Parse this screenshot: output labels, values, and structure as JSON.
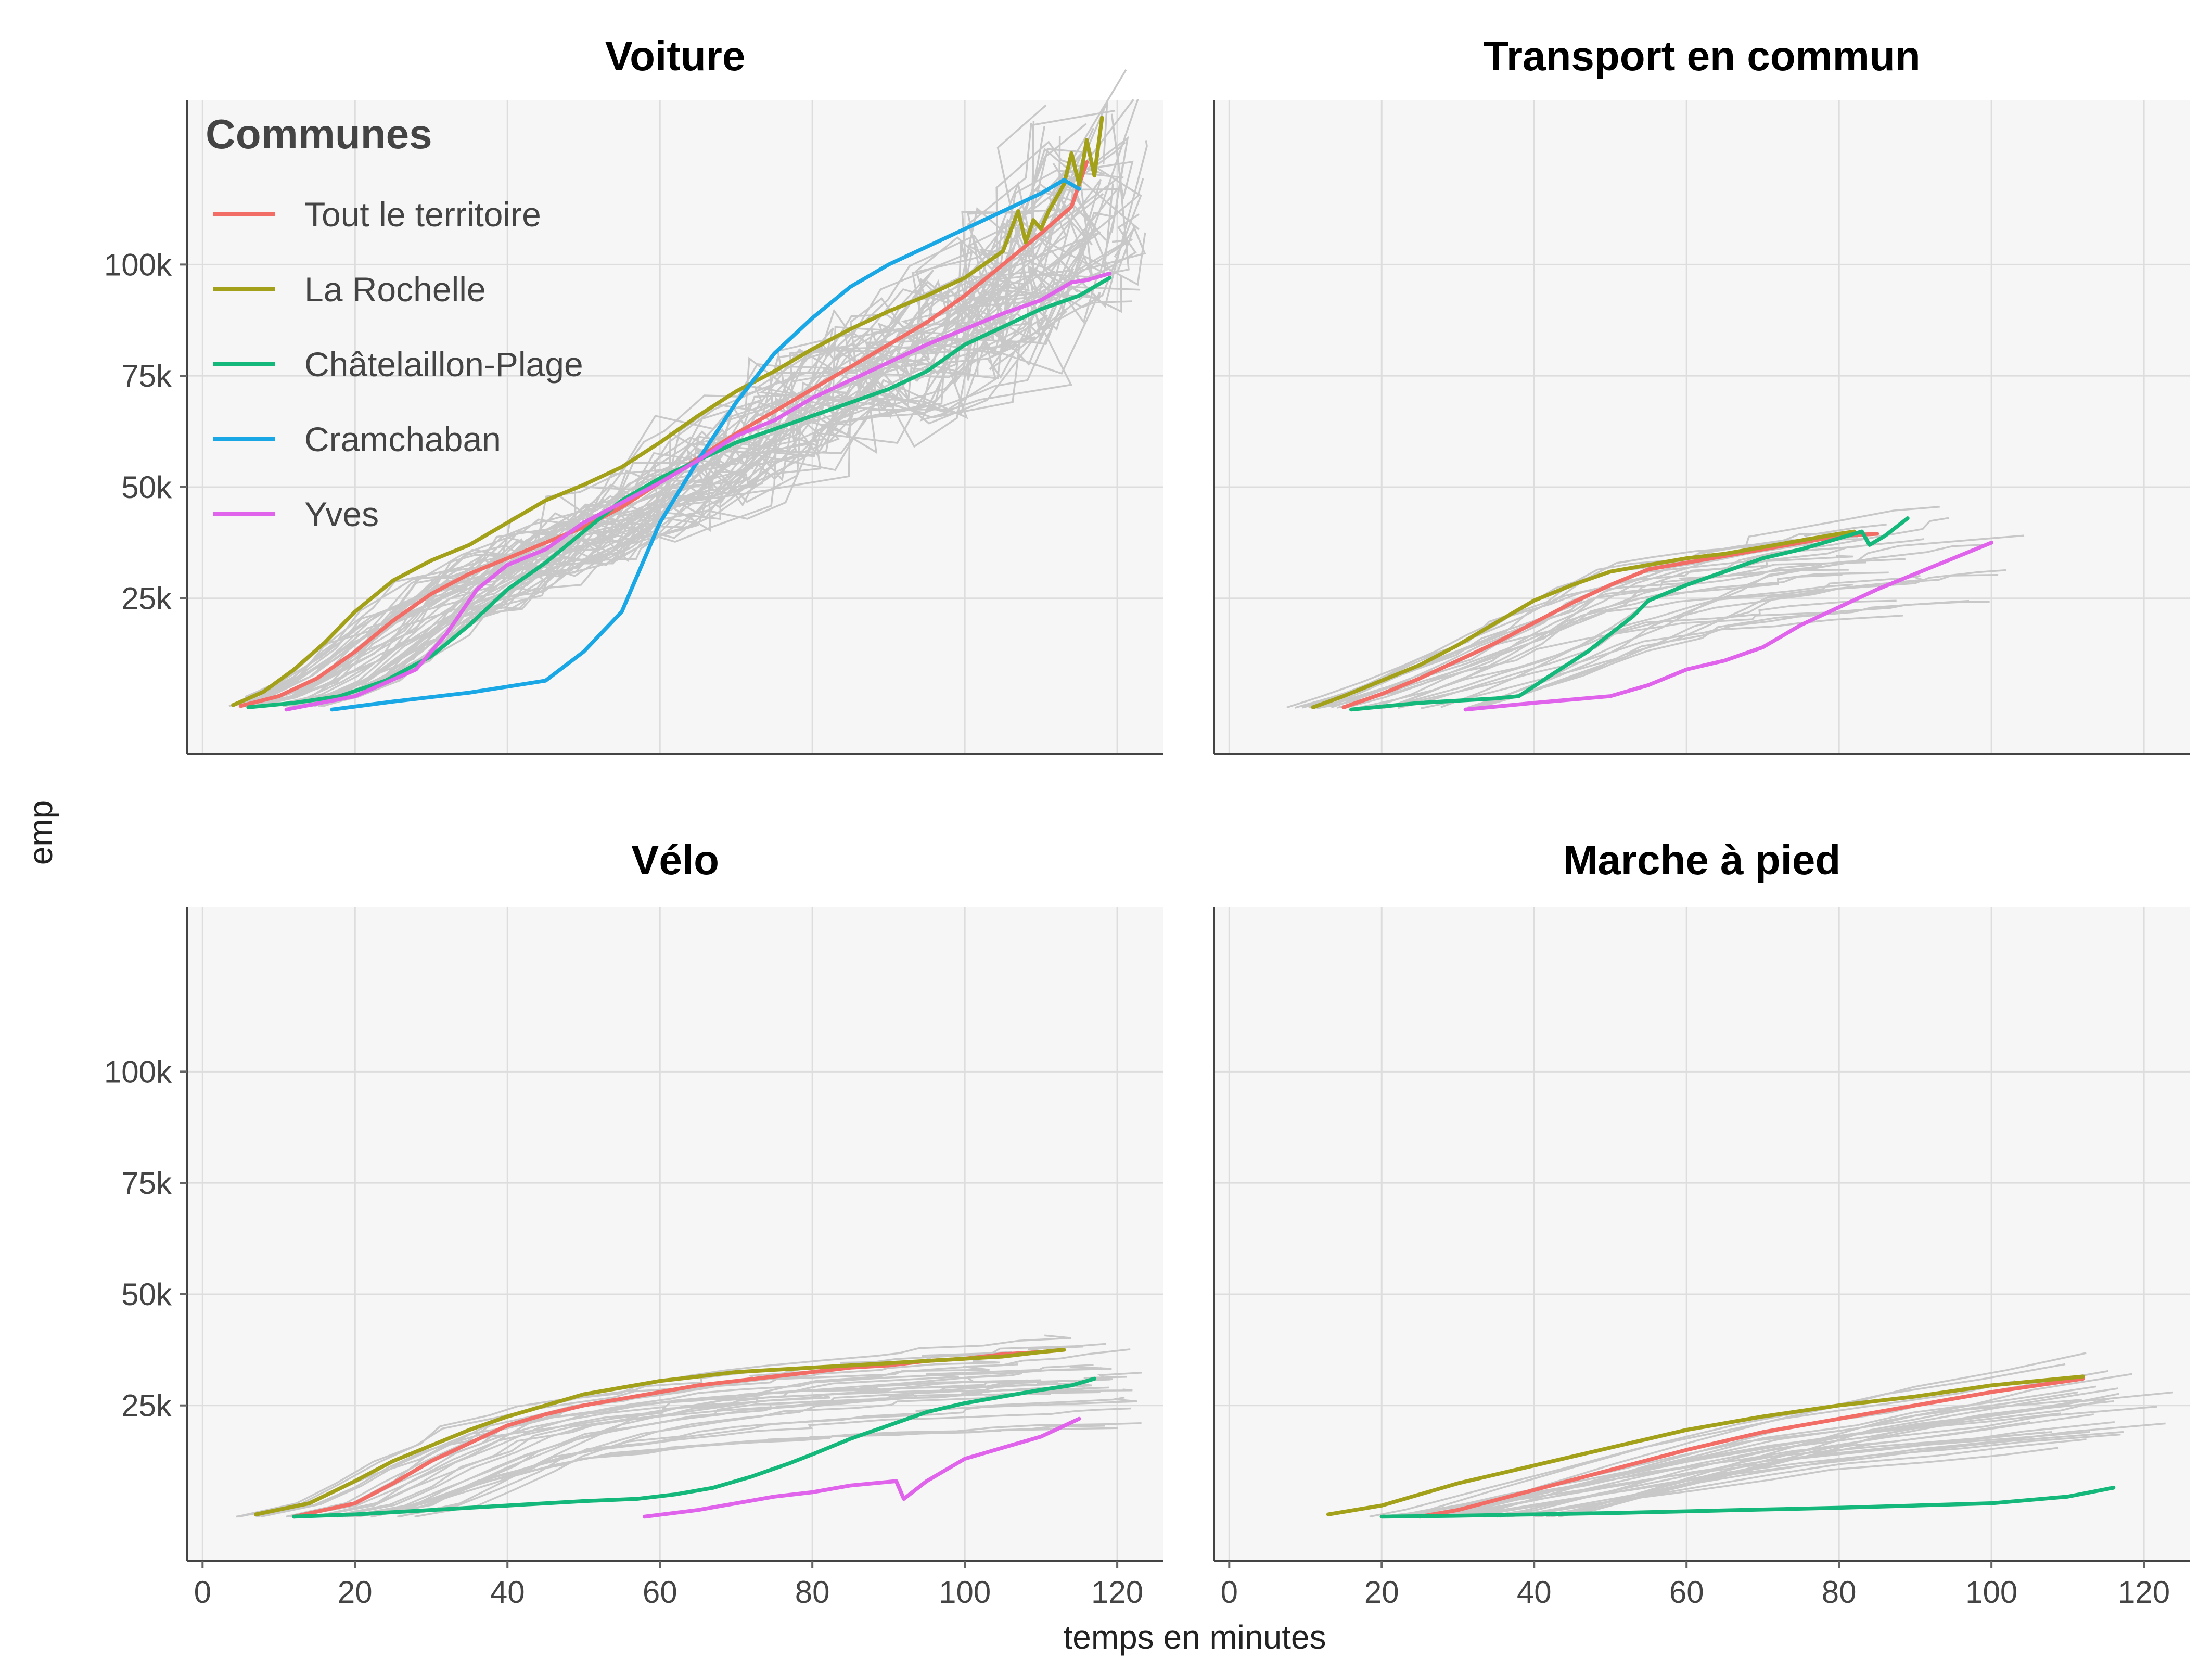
{
  "chart_data": {
    "type": "line",
    "xlabel": "temps en minutes",
    "ylabel": "emp",
    "xlim": [
      -2,
      126
    ],
    "ylim": [
      -10000,
      137000
    ],
    "xticks": [
      0,
      20,
      40,
      60,
      80,
      100,
      120
    ],
    "yticks": [
      25000,
      50000,
      75000,
      100000
    ],
    "ytick_labels": [
      "25k",
      "50k",
      "75k",
      "100k"
    ],
    "grid": true,
    "legend": {
      "title": "Communes",
      "placement": "top-left inside first panel",
      "entries": [
        {
          "name": "Tout le territoire",
          "color": "#f26d66"
        },
        {
          "name": "La Rochelle",
          "color": "#a3a01a"
        },
        {
          "name": "Châtelaillon-Plage",
          "color": "#14b87a"
        },
        {
          "name": "Cramchaban",
          "color": "#1aa7e6"
        },
        {
          "name": "Yves",
          "color": "#e064eb"
        }
      ]
    },
    "background_series_color": "#c8c8c8",
    "panels": [
      {
        "title": "Voiture",
        "series": [
          {
            "name": "Tout le territoire",
            "x": [
              5,
              10,
              15,
              20,
              25,
              30,
              35,
              40,
              45,
              50,
              55,
              60,
              65,
              70,
              75,
              80,
              85,
              90,
              95,
              100,
              105,
              110,
              114,
              116
            ],
            "y": [
              800,
              3000,
              7000,
              13000,
              20000,
              26000,
              30500,
              34000,
              37500,
              41000,
              45500,
              51000,
              56500,
              62000,
              67000,
              72000,
              77000,
              82000,
              87000,
              93000,
              100000,
              107000,
              113000,
              123000
            ]
          },
          {
            "name": "La Rochelle",
            "x": [
              4,
              8,
              12,
              16,
              20,
              25,
              30,
              35,
              40,
              45,
              50,
              55,
              60,
              65,
              70,
              75,
              80,
              85,
              90,
              95,
              100,
              105,
              107,
              108,
              109,
              110,
              111,
              112,
              113,
              114,
              115,
              116,
              117,
              118
            ],
            "y": [
              1000,
              4000,
              9000,
              15000,
              22000,
              29000,
              33500,
              37000,
              42000,
              47000,
              50500,
              54500,
              60000,
              66000,
              71500,
              76000,
              81000,
              85500,
              89500,
              93000,
              97000,
              103000,
              112000,
              105000,
              110000,
              108000,
              112000,
              115000,
              118000,
              125000,
              118000,
              128000,
              120000,
              133000
            ]
          },
          {
            "name": "Châtelaillon-Plage",
            "x": [
              6,
              12,
              18,
              24,
              30,
              35,
              40,
              45,
              50,
              55,
              60,
              65,
              70,
              75,
              80,
              85,
              90,
              95,
              100,
              105,
              110,
              115,
              119
            ],
            "y": [
              500,
              1500,
              3000,
              6500,
              12000,
              19000,
              27000,
              33000,
              40000,
              47000,
              52000,
              56000,
              60000,
              63000,
              66000,
              69000,
              72000,
              76000,
              82000,
              86000,
              90000,
              93000,
              97000
            ]
          },
          {
            "name": "Cramchaban",
            "x": [
              17,
              25,
              35,
              45,
              50,
              55,
              60,
              65,
              70,
              75,
              80,
              85,
              90,
              95,
              100,
              105,
              110,
              113,
              115
            ],
            "y": [
              0,
              1800,
              3800,
              6500,
              13000,
              22000,
              42000,
              56000,
              69000,
              80000,
              88000,
              95000,
              100000,
              104000,
              108000,
              112000,
              116000,
              119000,
              117000
            ]
          },
          {
            "name": "Yves",
            "x": [
              11,
              20,
              28,
              32,
              36,
              40,
              45,
              50,
              55,
              60,
              65,
              70,
              75,
              80,
              85,
              90,
              95,
              100,
              105,
              110,
              114,
              116,
              119
            ],
            "y": [
              0,
              3000,
              9000,
              17000,
              27000,
              32500,
              36000,
              42000,
              46500,
              51000,
              56000,
              61500,
              65000,
              70000,
              74000,
              78000,
              82000,
              85500,
              89000,
              92000,
              96000,
              96500,
              98000
            ]
          }
        ]
      },
      {
        "title": "Transport en commun",
        "series": [
          {
            "name": "Tout le territoire",
            "x": [
              15,
              20,
              25,
              30,
              35,
              40,
              45,
              50,
              55,
              60,
              65,
              70,
              75,
              80,
              85
            ],
            "y": [
              500,
              3500,
              7000,
              11000,
              15000,
              19500,
              24000,
              28000,
              31500,
              33000,
              34500,
              36000,
              37500,
              39000,
              39500
            ]
          },
          {
            "name": "La Rochelle",
            "x": [
              11,
              15,
              20,
              25,
              30,
              35,
              40,
              45,
              50,
              55,
              60,
              65,
              70,
              75,
              80,
              82
            ],
            "y": [
              500,
              3000,
              6500,
              10000,
              14500,
              19500,
              24500,
              28000,
              31000,
              32500,
              34000,
              35000,
              36500,
              38000,
              39500,
              40000
            ]
          },
          {
            "name": "Châtelaillon-Plage",
            "x": [
              16,
              25,
              35,
              38,
              42,
              47,
              50,
              53,
              55,
              60,
              65,
              70,
              75,
              80,
              83,
              84,
              86,
              89
            ],
            "y": [
              0,
              1500,
              2500,
              3000,
              7500,
              13000,
              17000,
              21000,
              24500,
              28000,
              31000,
              34000,
              36000,
              38500,
              40000,
              37000,
              39000,
              43000
            ]
          },
          {
            "name": "Yves",
            "x": [
              31,
              40,
              50,
              55,
              60,
              65,
              70,
              75,
              80,
              85,
              90,
              95,
              100
            ],
            "y": [
              0,
              1500,
              3000,
              5500,
              9000,
              11000,
              14000,
              19000,
              23000,
              27000,
              30500,
              34000,
              37500
            ]
          }
        ]
      },
      {
        "title": "Vélo",
        "series": [
          {
            "name": "Tout le territoire",
            "x": [
              12,
              20,
              25,
              30,
              35,
              40,
              45,
              50,
              55,
              60,
              65,
              70,
              75,
              80,
              85,
              90,
              95,
              100,
              105,
              110,
              113
            ],
            "y": [
              0,
              3000,
              7500,
              12500,
              16500,
              20500,
              23000,
              25000,
              26500,
              28000,
              29500,
              30500,
              31500,
              32500,
              33500,
              34000,
              35000,
              35500,
              36500,
              37000,
              37500
            ]
          },
          {
            "name": "La Rochelle",
            "x": [
              7,
              14,
              20,
              25,
              30,
              35,
              40,
              45,
              50,
              55,
              60,
              65,
              70,
              75,
              80,
              85,
              90,
              95,
              100,
              105,
              110,
              113
            ],
            "y": [
              500,
              3000,
              8000,
              12500,
              16000,
              19500,
              22500,
              25000,
              27500,
              29000,
              30500,
              31500,
              32500,
              33000,
              33500,
              34000,
              34500,
              35000,
              35500,
              36000,
              37000,
              37500
            ]
          },
          {
            "name": "Châtelaillon-Plage",
            "x": [
              12,
              20,
              30,
              40,
              50,
              57,
              62,
              67,
              72,
              77,
              80,
              85,
              90,
              95,
              100,
              105,
              110,
              114,
              117
            ],
            "y": [
              0,
              500,
              1500,
              2500,
              3500,
              4000,
              5000,
              6500,
              9000,
              12000,
              14000,
              17500,
              20500,
              23500,
              25500,
              27000,
              28500,
              29500,
              31000
            ]
          },
          {
            "name": "Yves",
            "x": [
              58,
              65,
              70,
              75,
              80,
              85,
              91,
              92,
              95,
              100,
              105,
              110,
              115
            ],
            "y": [
              0,
              1500,
              3000,
              4500,
              5500,
              7000,
              8000,
              4000,
              8000,
              13000,
              15500,
              18000,
              22000
            ]
          }
        ]
      },
      {
        "title": "Marche à pied",
        "series": [
          {
            "name": "Tout le territoire",
            "x": [
              25,
              30,
              40,
              50,
              60,
              70,
              80,
              90,
              100,
              112
            ],
            "y": [
              0,
              1500,
              6000,
              10500,
              15000,
              19000,
              22000,
              25000,
              28000,
              31000
            ]
          },
          {
            "name": "La Rochelle",
            "x": [
              13,
              20,
              25,
              30,
              40,
              50,
              60,
              70,
              80,
              90,
              100,
              112
            ],
            "y": [
              500,
              2500,
              5000,
              7500,
              11500,
              15500,
              19500,
              22500,
              25000,
              27000,
              29500,
              31500
            ]
          },
          {
            "name": "Châtelaillon-Plage",
            "x": [
              20,
              30,
              40,
              50,
              60,
              70,
              80,
              90,
              100,
              110,
              116
            ],
            "y": [
              0,
              200,
              500,
              800,
              1200,
              1600,
              2000,
              2500,
              3000,
              4500,
              6500
            ]
          }
        ]
      }
    ]
  }
}
